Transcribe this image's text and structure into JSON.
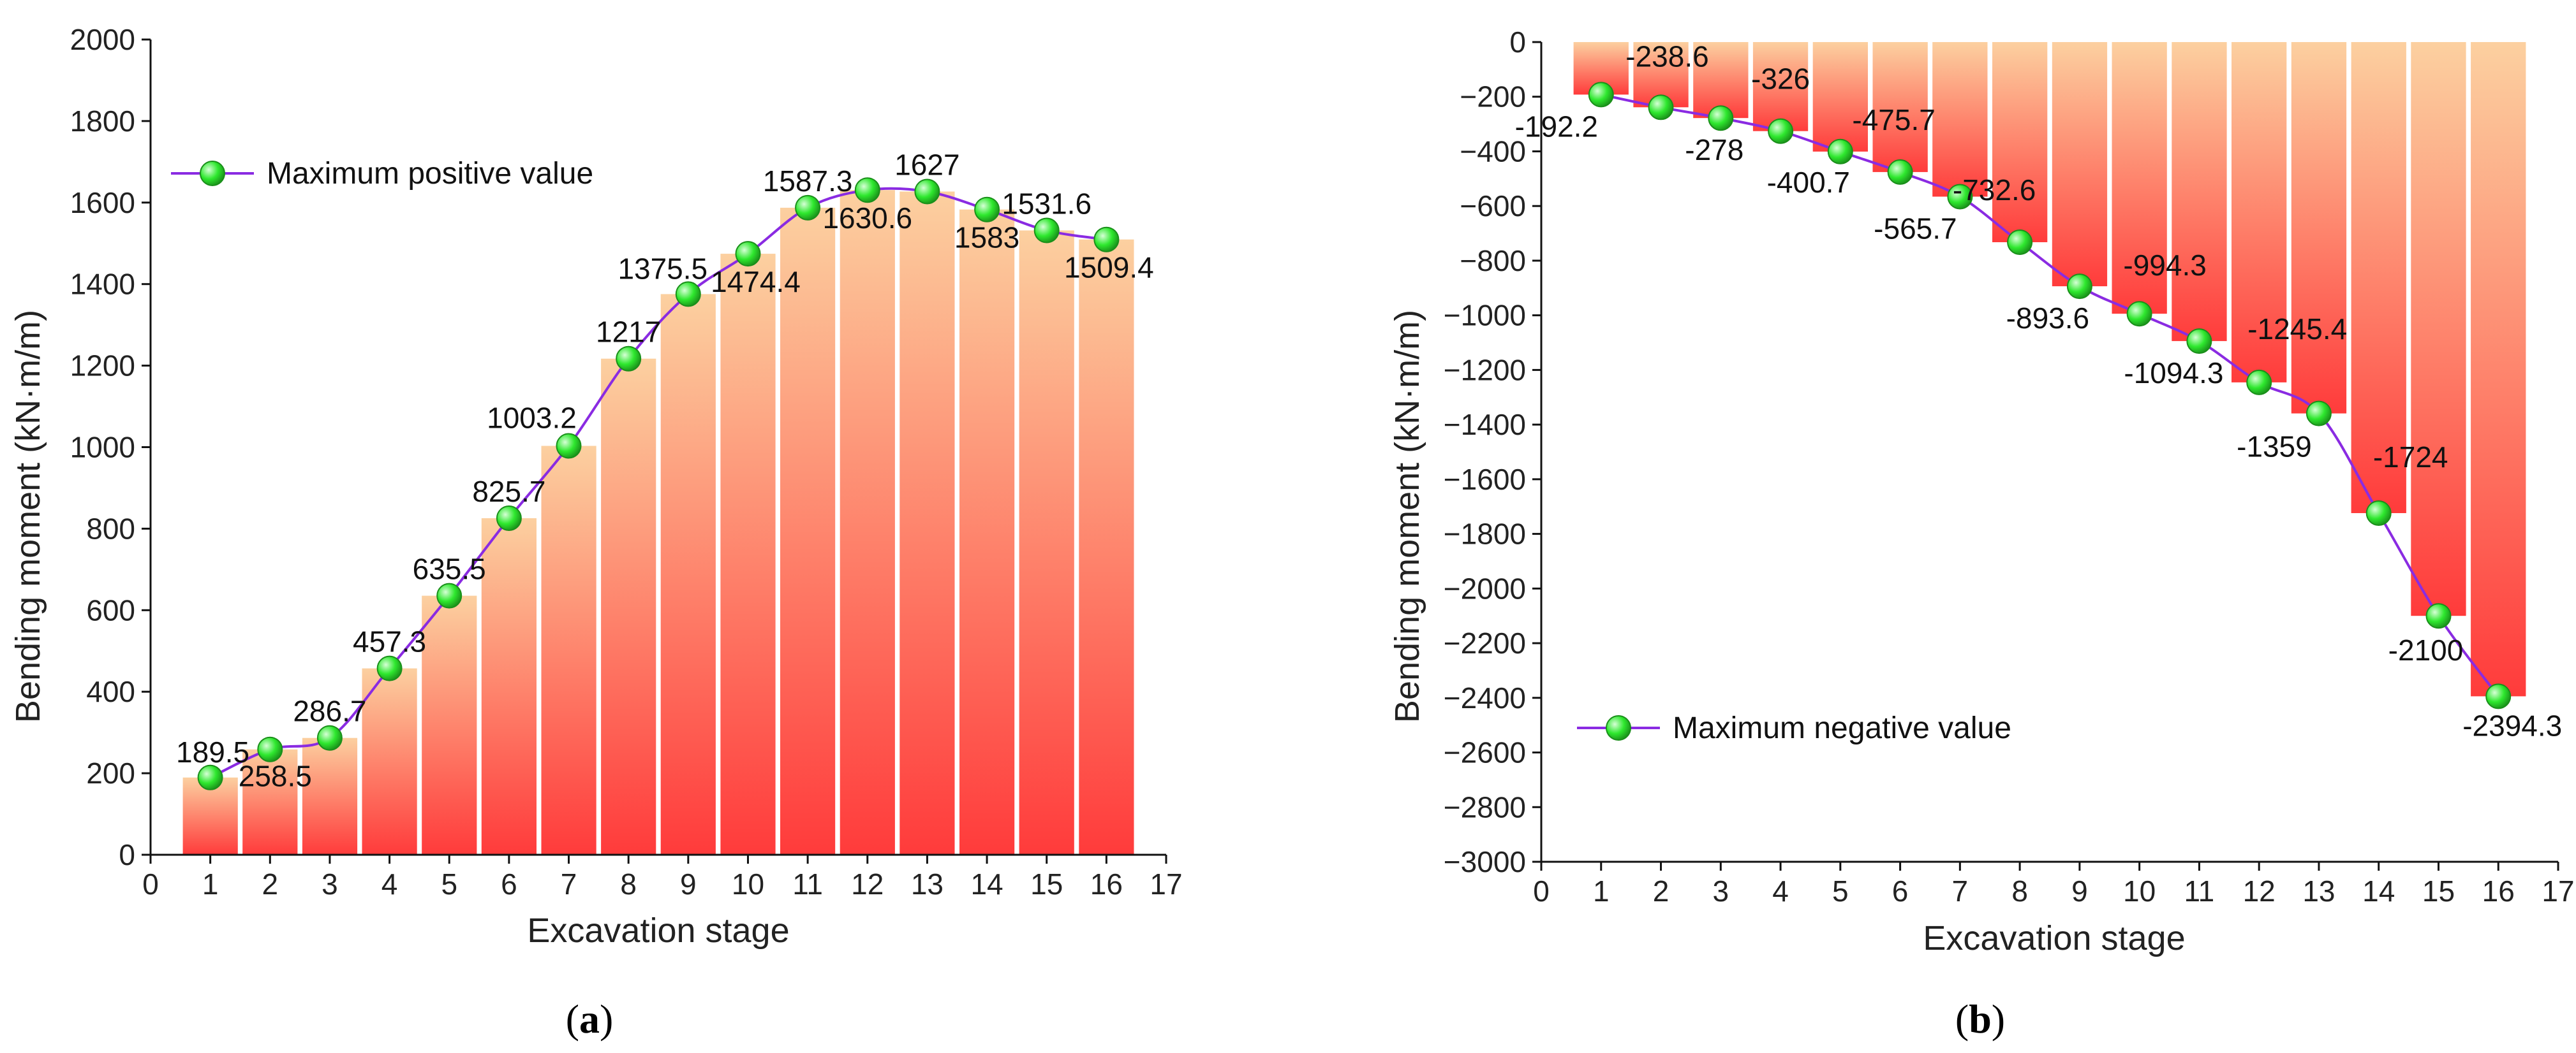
{
  "panels": [
    {
      "id": "a",
      "label_open": "(",
      "label_letter": "a",
      "label_close": ")"
    },
    {
      "id": "b",
      "label_open": "(",
      "label_letter": "b",
      "label_close": ")"
    }
  ],
  "colors": {
    "bar_top": "#fcd0a0",
    "bar_bottom": "#ff3b3b",
    "line": "#8a2be2",
    "marker_fill": "#2ee82e",
    "marker_highlight": "#d6ffd6",
    "marker_stroke": "#1a8f1a"
  },
  "chart_data": [
    {
      "type": "bar",
      "overlay": "line",
      "xlabel": "Excavation stage",
      "ylabel": "Bending moment (kN·m/m)",
      "x_ticks": [
        "0",
        "1",
        "2",
        "3",
        "4",
        "5",
        "6",
        "7",
        "8",
        "9",
        "10",
        "11",
        "12",
        "13",
        "14",
        "15",
        "16",
        "17"
      ],
      "y_ticks": [
        "0",
        "200",
        "400",
        "600",
        "800",
        "1000",
        "1200",
        "1400",
        "1600",
        "1800",
        "2000"
      ],
      "xlim": [
        0,
        17
      ],
      "ylim": [
        0,
        2000
      ],
      "categories": [
        1,
        2,
        3,
        4,
        5,
        6,
        7,
        8,
        9,
        10,
        11,
        12,
        13,
        14,
        15,
        16
      ],
      "values": [
        189.5,
        258.5,
        286.7,
        457.3,
        635.5,
        825.7,
        1003.2,
        1217,
        1375.5,
        1474.4,
        1587.3,
        1630.6,
        1627,
        1583,
        1531.6,
        1509.4
      ],
      "value_labels": [
        "189.5",
        "258.5",
        "286.7",
        "457.3",
        "635.5",
        "825.7",
        "1003.2",
        "1217",
        "1375.5",
        "1474.4",
        "1587.3",
        "1630.6",
        "1627",
        "1583",
        "1531.6",
        "1509.4"
      ],
      "legend": {
        "label": "Maximum positive value",
        "position": "top-left"
      }
    },
    {
      "type": "bar",
      "overlay": "line",
      "xlabel": "Excavation stage",
      "ylabel": "Bending moment (kN·m/m)",
      "x_ticks": [
        "0",
        "1",
        "2",
        "3",
        "4",
        "5",
        "6",
        "7",
        "8",
        "9",
        "10",
        "11",
        "12",
        "13",
        "14",
        "15",
        "16",
        "17"
      ],
      "y_ticks": [
        "0",
        "−200",
        "−400",
        "−600",
        "−800",
        "−1000",
        "−1200",
        "−1400",
        "−1600",
        "−1800",
        "−2000",
        "−2200",
        "−2400",
        "−2600",
        "−2800",
        "−3000"
      ],
      "xlim": [
        0,
        17
      ],
      "ylim": [
        -3000,
        0
      ],
      "categories": [
        1,
        2,
        3,
        4,
        5,
        6,
        7,
        8,
        9,
        10,
        11,
        12,
        13,
        14,
        15,
        16
      ],
      "values": [
        -192.2,
        -238.6,
        -278,
        -326,
        -400.7,
        -475.7,
        -565.7,
        -732.6,
        -893.6,
        -994.3,
        -1094.3,
        -1245.4,
        -1359,
        -1724,
        -2100,
        -2394.3
      ],
      "value_labels": [
        "-192.2",
        "-238.6",
        "-278",
        "-326",
        "-400.7",
        "-475.7",
        "-565.7",
        "-732.6",
        "-893.6",
        "-994.3",
        "-1094.3",
        "-1245.4",
        "-1359",
        "-1724",
        "-2100",
        "-2394.3"
      ],
      "legend": {
        "label": "Maximum negative value",
        "position": "bottom-left"
      }
    }
  ]
}
